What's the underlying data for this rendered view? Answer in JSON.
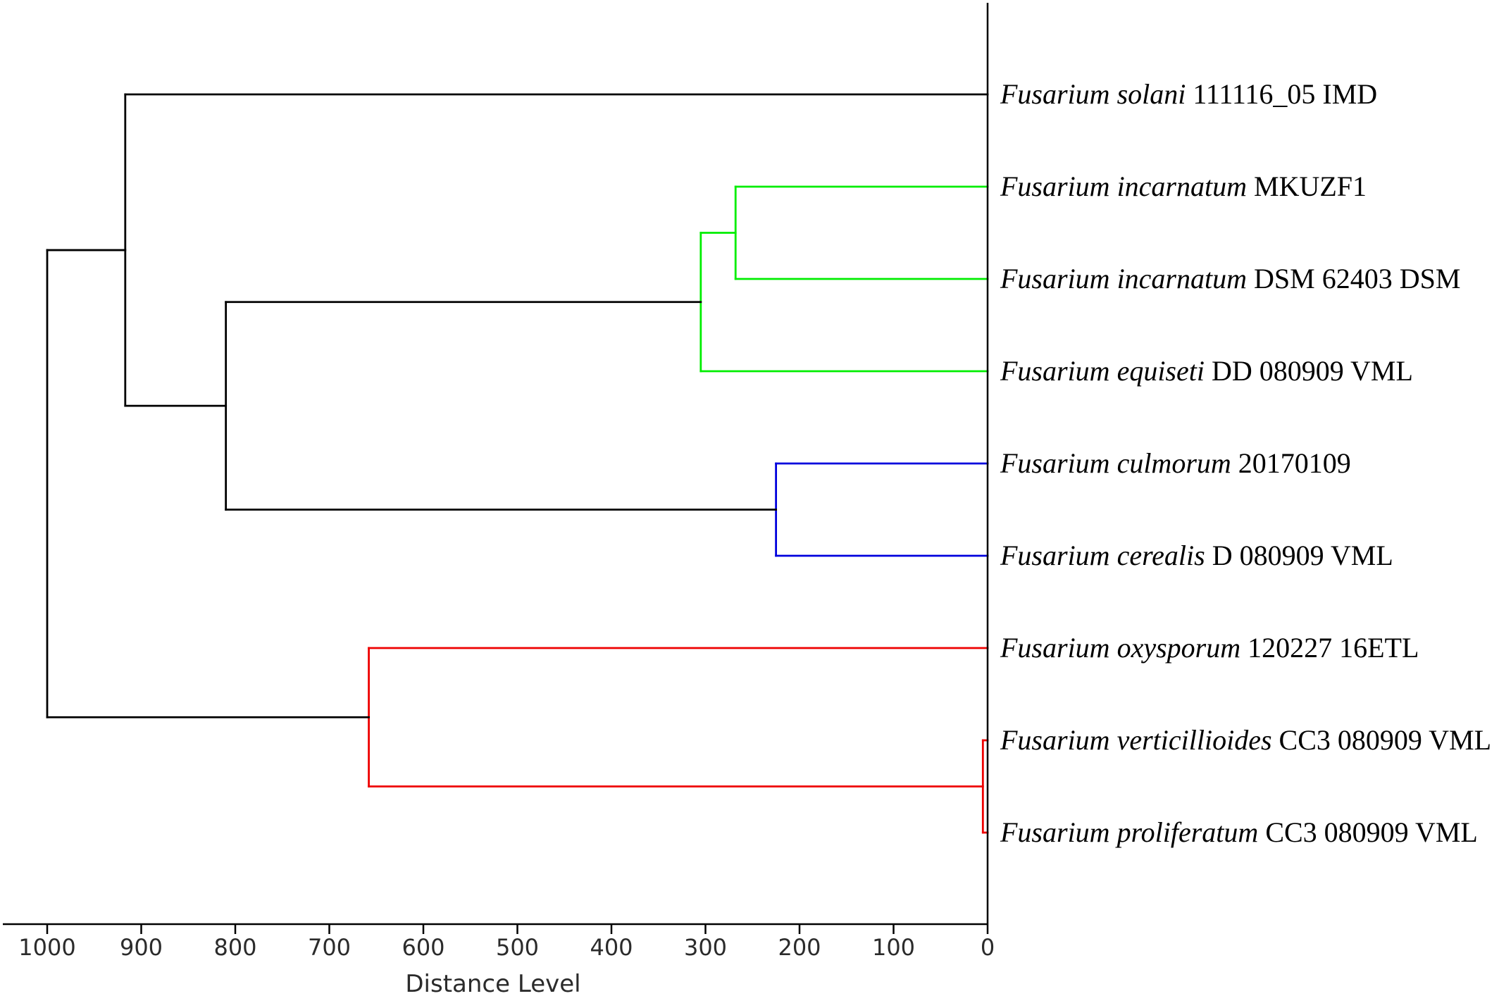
{
  "dendrogram": {
    "axis_title": "Distance Level",
    "axis_range": [
      0,
      1000
    ],
    "ticks": [
      1000,
      900,
      800,
      700,
      600,
      500,
      400,
      300,
      200,
      100,
      0
    ],
    "tick_labels": [
      "1000",
      "900",
      "800",
      "700",
      "600",
      "500",
      "400",
      "300",
      "200",
      "100",
      "0"
    ],
    "colors": {
      "black": "#000000",
      "green": "#00ee00",
      "blue": "#0000dd",
      "red": "#ee0000"
    },
    "leaves": [
      {
        "id": "L1",
        "species": "Fusarium solani",
        "strain": "111116_05 IMD"
      },
      {
        "id": "L2",
        "species": "Fusarium incarnatum",
        "strain": "MKUZF1"
      },
      {
        "id": "L3",
        "species": "Fusarium incarnatum",
        "strain": "DSM 62403 DSM"
      },
      {
        "id": "L4",
        "species": "Fusarium equiseti",
        "strain": "DD 080909 VML"
      },
      {
        "id": "L5",
        "species": "Fusarium culmorum",
        "strain": "20170109"
      },
      {
        "id": "L6",
        "species": "Fusarium cerealis",
        "strain": "D 080909 VML"
      },
      {
        "id": "L7",
        "species": "Fusarium oxysporum",
        "strain": "120227 16ETL"
      },
      {
        "id": "L8",
        "species": "Fusarium verticillioides",
        "strain": "CC3 080909 VML"
      },
      {
        "id": "L9",
        "species": "Fusarium proliferatum",
        "strain": "CC3 080909 VML"
      }
    ],
    "merges": [
      {
        "id": "N1",
        "children": [
          "L8",
          "L9"
        ],
        "distance": 5,
        "color": "red"
      },
      {
        "id": "N2",
        "children": [
          "L5",
          "L6"
        ],
        "distance": 225,
        "color": "blue"
      },
      {
        "id": "N3",
        "children": [
          "L2",
          "L3"
        ],
        "distance": 268,
        "color": "green"
      },
      {
        "id": "N4",
        "children": [
          "N3",
          "L4"
        ],
        "distance": 305,
        "color": "green"
      },
      {
        "id": "N5",
        "children": [
          "L7",
          "N1"
        ],
        "distance": 658,
        "color": "red"
      },
      {
        "id": "N6",
        "children": [
          "N4",
          "N2"
        ],
        "distance": 810,
        "color": "black"
      },
      {
        "id": "N7",
        "children": [
          "L1",
          "N6"
        ],
        "distance": 917,
        "color": "black"
      },
      {
        "id": "N8",
        "children": [
          "N7",
          "N5"
        ],
        "distance": 1000,
        "color": "black"
      }
    ]
  }
}
